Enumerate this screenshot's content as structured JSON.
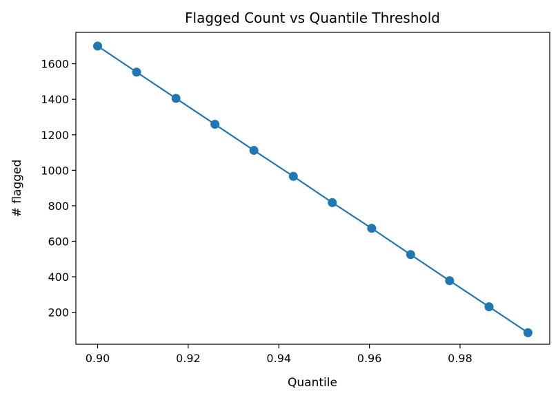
{
  "chart_data": {
    "type": "line",
    "title": "Flagged Count vs Quantile Threshold",
    "xlabel": "Quantile",
    "ylabel": "# flagged",
    "xlim": [
      0.8952,
      0.9998
    ],
    "ylim": [
      20,
      1777
    ],
    "xticks": [
      0.9,
      0.92,
      0.94,
      0.96,
      0.98
    ],
    "xtick_labels": [
      "0.90",
      "0.92",
      "0.94",
      "0.96",
      "0.98"
    ],
    "yticks": [
      200,
      400,
      600,
      800,
      1000,
      1200,
      1400,
      1600
    ],
    "ytick_labels": [
      "200",
      "400",
      "600",
      "800",
      "1000",
      "1200",
      "1400",
      "1600"
    ],
    "grid": false,
    "legend": false,
    "series": [
      {
        "color": "#1f77b4",
        "marker": "circle",
        "x": [
          0.9,
          0.9086,
          0.9173,
          0.9259,
          0.9345,
          0.9432,
          0.9518,
          0.9605,
          0.9691,
          0.9777,
          0.9864,
          0.995
        ],
        "y": [
          1700,
          1553,
          1405,
          1259,
          1112,
          966,
          818,
          673,
          525,
          378,
          231,
          85
        ]
      }
    ]
  }
}
